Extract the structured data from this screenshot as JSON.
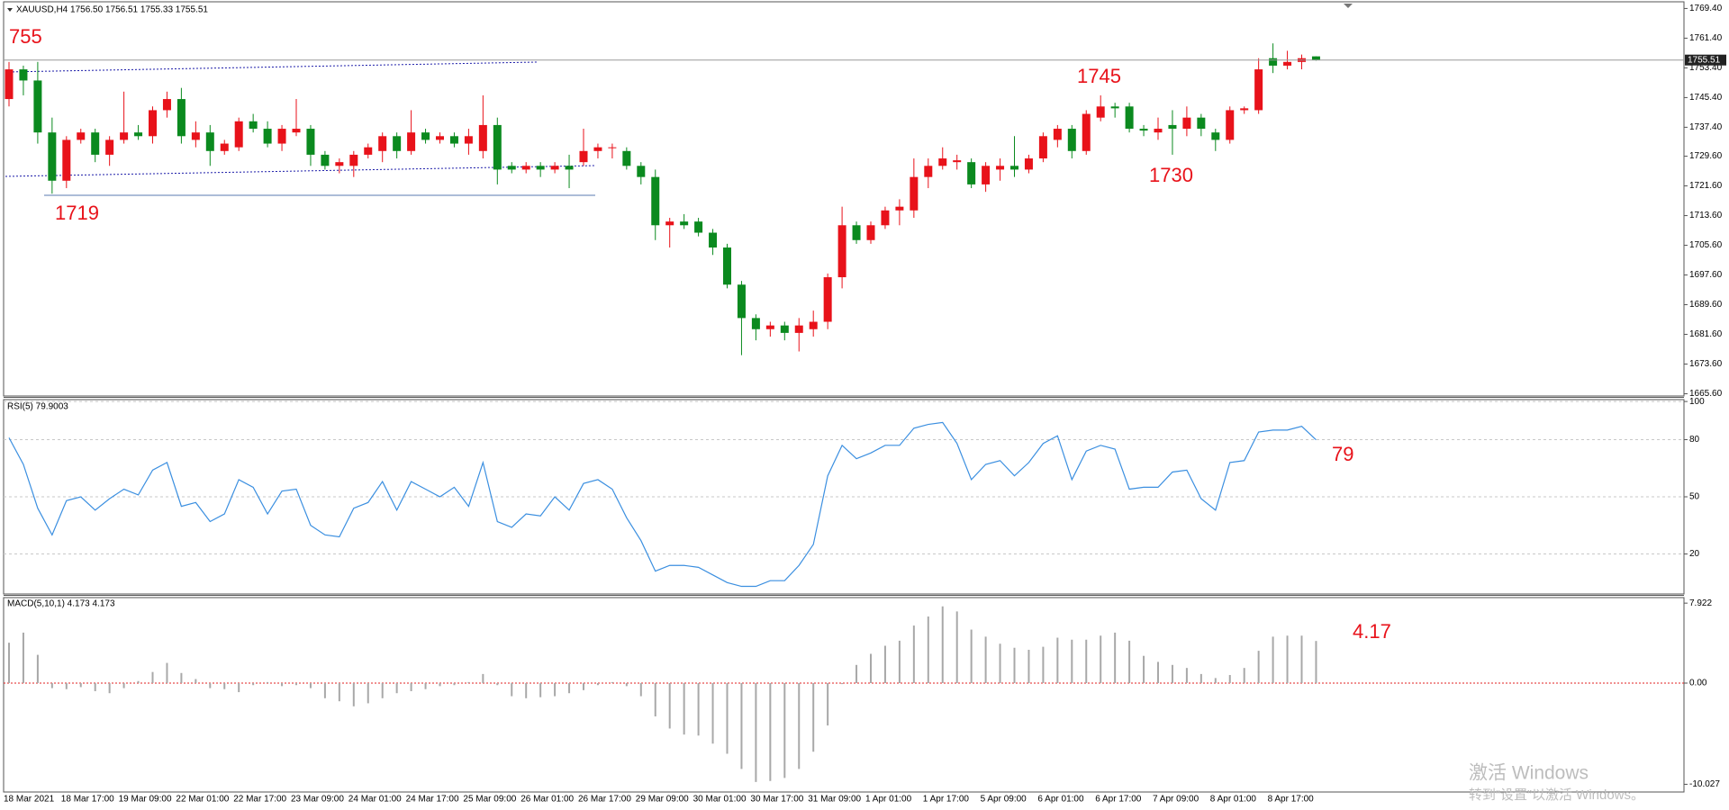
{
  "chart_data": [
    {
      "type": "candlestick",
      "title": "XAUUSD,H4  1756.50 1756.51 1755.33 1755.51",
      "categories": [
        "18 Mar 2021",
        null,
        null,
        null,
        "18 Mar 17:00",
        null,
        null,
        null,
        "19 Mar 09:00",
        null,
        null,
        null,
        "22 Mar 01:00",
        null,
        null,
        null,
        "22 Mar 17:00",
        null,
        null,
        null,
        "23 Mar 09:00",
        null,
        null,
        null,
        "24 Mar 01:00",
        null,
        null,
        null,
        "24 Mar 17:00",
        null,
        null,
        null,
        "25 Mar 09:00",
        null,
        null,
        null,
        "26 Mar 01:00",
        null,
        null,
        null,
        "26 Mar 17:00",
        null,
        null,
        null,
        "29 Mar 09:00",
        null,
        null,
        null,
        "30 Mar 01:00",
        null,
        null,
        null,
        "30 Mar 17:00",
        null,
        null,
        null,
        "31 Mar 09:00",
        null,
        null,
        null,
        "1 Apr 01:00",
        null,
        null,
        null,
        "1 Apr 17:00",
        null,
        null,
        null,
        "5 Apr 09:00",
        null,
        null,
        null,
        "6 Apr 01:00",
        null,
        null,
        null,
        "6 Apr 17:00",
        null,
        null,
        null,
        "7 Apr 09:00",
        null,
        null,
        null,
        "8 Apr 01:00",
        null,
        null,
        null,
        "8 Apr 17:00",
        null,
        null,
        null
      ],
      "open": [
        1745,
        1753,
        1750,
        1736,
        1723,
        1734,
        1736,
        1730,
        1734,
        1736,
        1735,
        1742,
        1745,
        1734,
        1736,
        1731,
        1732,
        1739,
        1737,
        1733,
        1736,
        1737,
        1730,
        1727,
        1727,
        1730,
        1731,
        1735,
        1731,
        1736,
        1734,
        1735,
        1733,
        1731,
        1738,
        1727,
        1726,
        1727,
        1726,
        1727,
        1728,
        1731,
        1732,
        1731,
        1727,
        1724,
        1711,
        1712,
        1712,
        1709,
        1705,
        1695,
        1686,
        1683,
        1684,
        1682,
        1683,
        1685,
        1697,
        1711,
        1707,
        1711,
        1715,
        1715,
        1724,
        1727,
        1728,
        1728,
        1722,
        1726,
        1727,
        1726,
        1729,
        1734,
        1737,
        1731,
        1740,
        1743,
        1743,
        1737,
        1736,
        1738,
        1737,
        1740,
        1736,
        1734,
        1742,
        1742,
        1756,
        1754,
        1755,
        1756.5
      ],
      "high": [
        1755,
        1754,
        1755,
        1740,
        1735,
        1737,
        1737,
        1735,
        1747,
        1738,
        1743,
        1747,
        1748,
        1739,
        1738,
        1734,
        1740,
        1741,
        1739,
        1738,
        1745,
        1738,
        1731,
        1729,
        1731,
        1733,
        1736,
        1736,
        1742,
        1737,
        1736,
        1736,
        1737,
        1746,
        1740,
        1728,
        1728,
        1728,
        1728,
        1730,
        1737,
        1733,
        1733,
        1732,
        1728,
        1726,
        1713,
        1714,
        1713,
        1710,
        1706,
        1696,
        1687,
        1685,
        1685,
        1686,
        1688,
        1698,
        1716,
        1712,
        1712,
        1716,
        1718,
        1729,
        1729,
        1732,
        1730,
        1729,
        1728,
        1729,
        1735,
        1730,
        1736,
        1738,
        1738,
        1742,
        1746,
        1744,
        1744,
        1738,
        1740,
        1742,
        1743,
        1741,
        1737,
        1743,
        1743,
        1756,
        1760,
        1758,
        1757,
        1756.51
      ],
      "low": [
        1743,
        1746,
        1733,
        1719.5,
        1721,
        1733,
        1728,
        1727,
        1733,
        1734,
        1733,
        1740,
        1733,
        1732,
        1727,
        1730,
        1731,
        1736,
        1732,
        1731,
        1735,
        1727,
        1726,
        1725,
        1724,
        1729,
        1728,
        1729,
        1730,
        1733,
        1733,
        1732,
        1730,
        1729,
        1722,
        1725,
        1725,
        1724,
        1725,
        1721,
        1727,
        1729,
        1729,
        1726,
        1722,
        1707,
        1705,
        1710,
        1708,
        1703,
        1694,
        1676,
        1680,
        1681,
        1680,
        1677,
        1681,
        1683,
        1694,
        1706,
        1706,
        1710,
        1711,
        1713,
        1721,
        1726,
        1726,
        1721,
        1720,
        1723,
        1724,
        1725,
        1728,
        1732,
        1729,
        1730,
        1739,
        1740,
        1736,
        1735,
        1734,
        1730,
        1735,
        1735,
        1731,
        1733,
        1741,
        1741,
        1752,
        1753,
        1753,
        1755.33
      ],
      "close": [
        1753,
        1750,
        1736,
        1723,
        1734,
        1736,
        1730,
        1734,
        1736,
        1735,
        1742,
        1745,
        1735,
        1736,
        1731,
        1733,
        1739,
        1737,
        1733,
        1737,
        1737,
        1730,
        1727,
        1728,
        1730,
        1732,
        1735,
        1731,
        1736,
        1734,
        1735,
        1733,
        1735,
        1738,
        1726,
        1726,
        1727,
        1726,
        1727,
        1726,
        1731,
        1732,
        1732,
        1727,
        1724,
        1711,
        1712,
        1711,
        1709,
        1705,
        1695,
        1686,
        1683,
        1684,
        1682,
        1684,
        1685,
        1697,
        1711,
        1707,
        1711,
        1715,
        1716,
        1724,
        1727,
        1729,
        1728.5,
        1722,
        1727,
        1727,
        1726,
        1729,
        1735,
        1737,
        1731,
        1741,
        1743,
        1742.5,
        1737,
        1736.5,
        1737,
        1737,
        1740,
        1737,
        1734,
        1742,
        1742.5,
        1753,
        1754,
        1755,
        1756,
        1755.51
      ],
      "up_color": "#e8121a",
      "down_color": "#0b8a1f",
      "current_price": 1755.51,
      "ylim": [
        1665.0,
        1771.2
      ],
      "yticks": [
        {
          "value": 1769.4,
          "label": "1769.40"
        },
        {
          "value": 1761.4,
          "label": "1761.40"
        },
        {
          "value": 1753.4,
          "label": "1753.40"
        },
        {
          "value": 1745.4,
          "label": "1745.40"
        },
        {
          "value": 1737.4,
          "label": "1737.40"
        },
        {
          "value": 1729.6,
          "label": "1729.60"
        },
        {
          "value": 1721.6,
          "label": "1721.60"
        },
        {
          "value": 1713.6,
          "label": "1713.60"
        },
        {
          "value": 1705.6,
          "label": "1705.60"
        },
        {
          "value": 1697.6,
          "label": "1697.60"
        },
        {
          "value": 1689.6,
          "label": "1689.60"
        },
        {
          "value": 1681.6,
          "label": "1681.60"
        },
        {
          "value": 1673.6,
          "label": "1673.60"
        },
        {
          "value": 1665.6,
          "label": "1665.60"
        }
      ],
      "grid": false,
      "annotations": [
        "755",
        "1719",
        "1745",
        "1730"
      ]
    },
    {
      "type": "line",
      "title": "RSI(5) 79.9003",
      "values": [
        81,
        67,
        44,
        30,
        48,
        50,
        43,
        49,
        54,
        51,
        64,
        68,
        45,
        47,
        37,
        41,
        59,
        55,
        41,
        53,
        54,
        35,
        30,
        29,
        44,
        47,
        58,
        43,
        58,
        54,
        50,
        55,
        45,
        68,
        37,
        34,
        41,
        40,
        50,
        43,
        57,
        59,
        54,
        39,
        27,
        11,
        14,
        14,
        13,
        9,
        5,
        3,
        3,
        6,
        6,
        14,
        25,
        61,
        77,
        70,
        73,
        77,
        77,
        86,
        88,
        89,
        78,
        59,
        67,
        69,
        61,
        68,
        78,
        82,
        59,
        74,
        77,
        75,
        54,
        55,
        55,
        63,
        64,
        49,
        43,
        68,
        69,
        84,
        85,
        85,
        87,
        79.9
      ],
      "color": "#3b8fe0",
      "ylim": [
        -1,
        101
      ],
      "yticks": [
        100,
        80,
        50,
        20
      ],
      "grid": true,
      "annotations": [
        "79"
      ]
    },
    {
      "type": "bar",
      "title": "MACD(5,10,1) 4.173 4.173",
      "values": [
        4.0,
        5.0,
        2.8,
        -0.5,
        -0.6,
        -0.4,
        -0.8,
        -1.0,
        -0.5,
        0.2,
        1.1,
        2.0,
        1.0,
        0.4,
        -0.5,
        -0.6,
        -0.9,
        -0.2,
        0.1,
        -0.3,
        -0.2,
        -0.5,
        -1.5,
        -1.8,
        -2.3,
        -2.0,
        -1.5,
        -1.0,
        -0.8,
        -0.6,
        -0.3,
        -0.2,
        0.1,
        0.9,
        -0.2,
        -1.3,
        -1.5,
        -1.4,
        -1.3,
        -1.0,
        -0.7,
        -0.2,
        0.1,
        -0.3,
        -1.3,
        -3.3,
        -4.5,
        -5.1,
        -5.2,
        -6.0,
        -7.0,
        -8.5,
        -9.8,
        -9.7,
        -9.4,
        -8.5,
        -6.8,
        -4.2,
        -0.1,
        1.8,
        2.9,
        3.7,
        4.2,
        5.7,
        6.6,
        7.6,
        7.1,
        5.3,
        4.6,
        3.9,
        3.5,
        3.3,
        3.6,
        4.5,
        4.3,
        4.3,
        4.7,
        5.0,
        4.2,
        2.7,
        2.1,
        1.8,
        1.5,
        0.9,
        0.5,
        0.8,
        1.5,
        3.2,
        4.6,
        4.7,
        4.7,
        4.173
      ],
      "color": "#a8a8a8",
      "zero_line_color": "#e02020",
      "ylim": [
        -10.79,
        8.47
      ],
      "yticks": [
        7.922,
        {
          "value": 0,
          "label": "0.00"
        },
        -10.027
      ],
      "grid": false,
      "annotations": [
        "4.17"
      ]
    }
  ],
  "watermark": [
    "激活 Windows",
    "转到“设置”以激活 Windows。"
  ]
}
